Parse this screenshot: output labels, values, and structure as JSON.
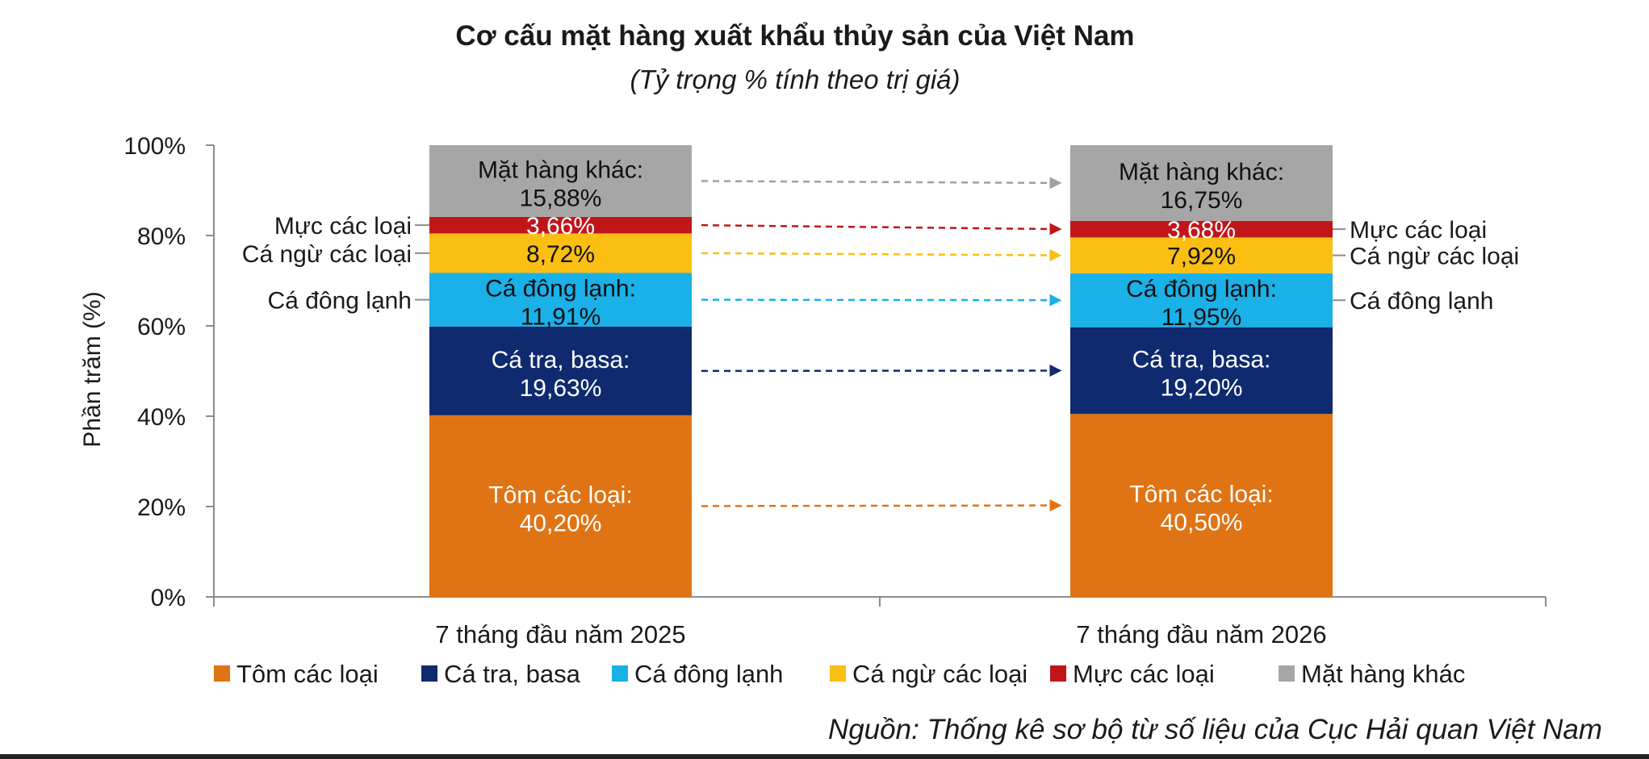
{
  "chart_data": {
    "type": "bar",
    "stacked": true,
    "title": "Cơ cấu mặt hàng xuất khẩu thủy sản của Việt Nam",
    "subtitle": "(Tỷ trọng % tính theo trị giá)",
    "ylabel": "Phần trăm (%)",
    "xlabel": "",
    "ylim": [
      0,
      100
    ],
    "yticks": [
      "0%",
      "20%",
      "40%",
      "60%",
      "80%",
      "100%"
    ],
    "categories": [
      "7 tháng đầu năm 2025",
      "7 tháng đầu năm 2026"
    ],
    "series": [
      {
        "name": "Tôm các loại",
        "color": "#e07414",
        "text_color": "#ffffff",
        "values": [
          40.2,
          40.5
        ],
        "segment_labels": [
          "Tôm các loại:",
          "Tôm các loại:"
        ],
        "value_labels": [
          "40,20%",
          "40,50%"
        ]
      },
      {
        "name": "Cá tra, basa",
        "color": "#0f2a6e",
        "text_color": "#ffffff",
        "values": [
          19.63,
          19.2
        ],
        "segment_labels": [
          "Cá tra, basa:",
          "Cá tra, basa:"
        ],
        "value_labels": [
          "19,63%",
          "19,20%"
        ]
      },
      {
        "name": "Cá đông lạnh",
        "color": "#1ab0e8",
        "text_color": "#111111",
        "values": [
          11.91,
          11.95
        ],
        "segment_labels": [
          "Cá đông lạnh:",
          "Cá đông lạnh:"
        ],
        "value_labels": [
          "11,91%",
          "11,95%"
        ]
      },
      {
        "name": "Cá ngừ các loại",
        "color": "#fbbf14",
        "text_color": "#111111",
        "values": [
          8.72,
          7.92
        ],
        "segment_labels": [
          "",
          ""
        ],
        "value_labels": [
          "8,72%",
          "7,92%"
        ]
      },
      {
        "name": "Mực các loại",
        "color": "#c0161a",
        "text_color": "#ffffff",
        "values": [
          3.66,
          3.68
        ],
        "segment_labels": [
          "",
          ""
        ],
        "value_labels": [
          "3,66%",
          "3,68%"
        ]
      },
      {
        "name": "Mặt hàng khác",
        "color": "#a6a6a6",
        "text_color": "#111111",
        "values": [
          15.88,
          16.75
        ],
        "segment_labels": [
          "Mặt hàng khác:",
          "Mặt hàng khác:"
        ],
        "value_labels": [
          "15,88%",
          "16,75%"
        ]
      }
    ],
    "side_labels_left": [
      "Mực các loại",
      "Cá ngừ các loại",
      "Cá đông lạnh"
    ],
    "side_labels_right": [
      "Mực các loại",
      "Cá ngừ các loại",
      "Cá đông lạnh"
    ],
    "legend_position": "bottom",
    "grid": false,
    "source": "Nguồn: Thống kê sơ bộ từ số liệu của Cục Hải quan Việt Nam"
  }
}
